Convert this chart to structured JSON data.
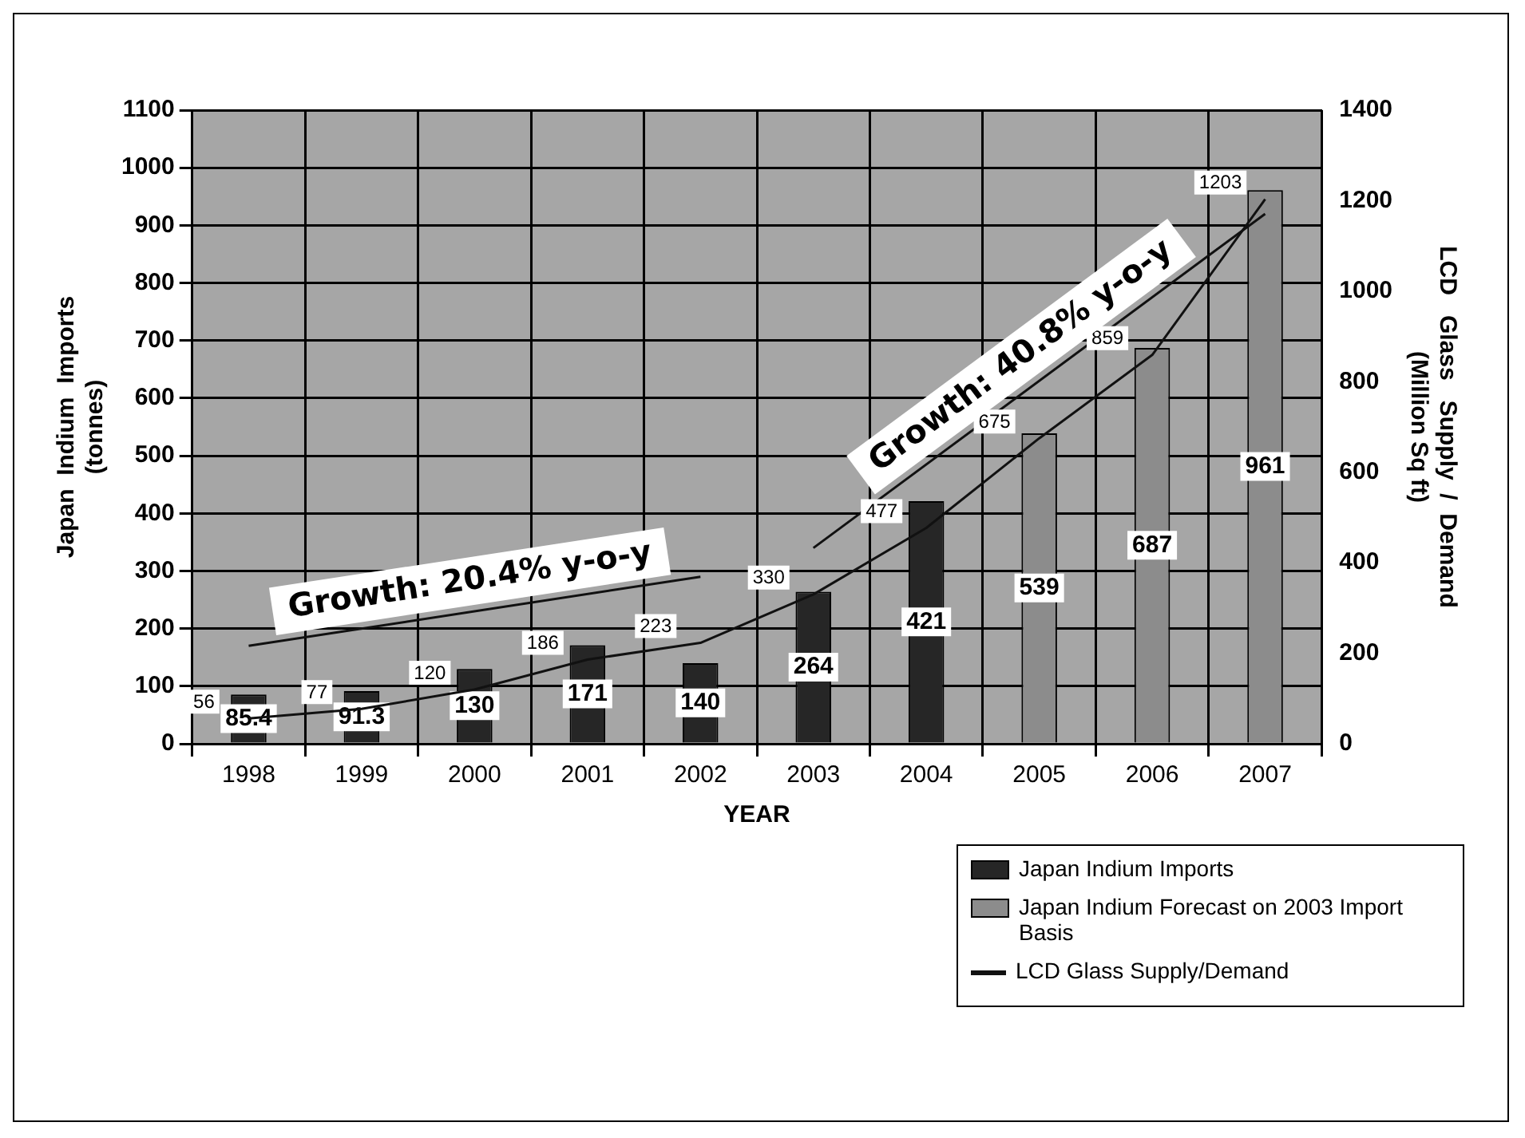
{
  "chart_data": {
    "type": "bar",
    "xlabel": "YEAR",
    "ylabel": "Japan  Indium  Imports\n(tonnes)",
    "y2label": "LCD   Glass   Supply  /  Demand\n(Million Sq ft)",
    "categories": [
      "1998",
      "1999",
      "2000",
      "2001",
      "2002",
      "2003",
      "2004",
      "2005",
      "2006",
      "2007"
    ],
    "series": [
      {
        "name": "Japan Indium Imports",
        "color": "#262626",
        "values": [
          85.4,
          91.3,
          130,
          171,
          140,
          264,
          421,
          null,
          null,
          null
        ],
        "value_labels": [
          "85.4",
          "91.3",
          "130",
          "171",
          "140",
          "264",
          "421",
          null,
          null,
          null
        ]
      },
      {
        "name": "Japan Indium Forecast on 2003 Import Basis",
        "color": "#8c8c8c",
        "values": [
          null,
          null,
          null,
          null,
          null,
          null,
          null,
          539,
          687,
          961
        ],
        "value_labels": [
          null,
          null,
          null,
          null,
          null,
          null,
          null,
          "539",
          "687",
          "961"
        ]
      },
      {
        "name": "LCD Glass Supply/Demand",
        "type": "line",
        "axis": "y2",
        "color": "#111111",
        "values": [
          56,
          77,
          120,
          186,
          223,
          330,
          477,
          675,
          859,
          1203
        ],
        "value_labels": [
          "56",
          "77",
          "120",
          "186",
          "223",
          "330",
          "477",
          "675",
          "859",
          "1203"
        ]
      },
      {
        "type": "line",
        "color": "#111111",
        "values": [
          170,
          null,
          null,
          null,
          290,
          null,
          null,
          null,
          null,
          null
        ]
      },
      {
        "type": "line",
        "color": "#111111",
        "values": [
          null,
          null,
          null,
          null,
          null,
          340,
          null,
          null,
          null,
          920
        ]
      }
    ],
    "ylim": [
      0,
      1100
    ],
    "yticks": [
      0,
      100,
      200,
      300,
      400,
      500,
      600,
      700,
      800,
      900,
      1000,
      1100
    ],
    "y2lim": [
      0,
      1400
    ],
    "y2ticks": [
      0,
      200,
      400,
      600,
      800,
      1000,
      1200,
      1400
    ],
    "annotations": [
      "Growth: 20.4% y-o-y",
      "Growth: 40.8% y-o-y"
    ],
    "grid": true,
    "legend": "bottom right",
    "marker": "none"
  }
}
